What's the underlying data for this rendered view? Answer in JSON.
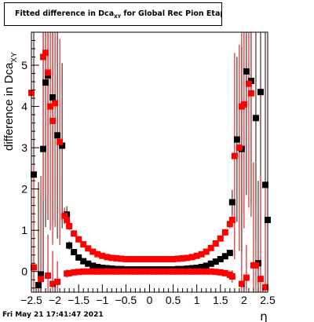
{
  "title": {
    "main": "Fitted difference in Dca",
    "sub": "XY",
    "rest": " for Global Rec Pion EtapT"
  },
  "footer": "Fri May 21 17:41:47 2021",
  "chart_data": {
    "type": "scatter",
    "title": "Fitted difference in DcaXY for Global Rec Pion EtapT",
    "xlabel": "η",
    "ylabel": "difference in Dca",
    "ylabel_sub": "XY",
    "xlim": [
      -2.5,
      2.5
    ],
    "ylim": [
      -0.5,
      5.8
    ],
    "xticks": [
      -2.5,
      -2,
      -1.5,
      -1,
      -0.5,
      0,
      0.5,
      1,
      1.5,
      2,
      2.5
    ],
    "xtick_labels": [
      "−2.5",
      "−2",
      "−1.5",
      "−1",
      "−0.5",
      "0",
      "0.5",
      "1",
      "1.5",
      "2",
      "2.5"
    ],
    "yticks": [
      0,
      1,
      2,
      3,
      4,
      5
    ],
    "ytick_labels": [
      "0",
      "1",
      "2",
      "3",
      "4",
      "5"
    ],
    "grid": false,
    "colors": {
      "series_a": "#000000",
      "series_b": "#ff0000",
      "error_bar_b": "#cc0000",
      "error_bar_a": "#330000"
    },
    "series": [
      {
        "color": "#000000",
        "marker": "square",
        "points": [
          [
            -2.45,
            2.35,
            5.0
          ],
          [
            -2.35,
            -0.33,
            2.5
          ],
          [
            -2.25,
            2.97,
            3.0
          ],
          [
            -2.2,
            4.58,
            3.5
          ],
          [
            -2.15,
            4.75,
            3.5
          ],
          [
            -2.05,
            4.22,
            3.0
          ],
          [
            -1.95,
            3.3,
            2.5
          ],
          [
            -1.85,
            3.05,
            2.0
          ],
          [
            -1.75,
            1.38,
            0.2
          ],
          [
            -1.7,
            0.63,
            0.1
          ],
          [
            -1.6,
            0.47,
            0.05
          ],
          [
            -1.5,
            0.34,
            0.03
          ],
          [
            -1.4,
            0.25,
            0.02
          ],
          [
            -1.3,
            0.19,
            0.02
          ],
          [
            -1.2,
            0.14,
            0.01
          ],
          [
            -1.1,
            0.11,
            0.01
          ],
          [
            -1.0,
            0.09,
            0.01
          ],
          [
            -0.9,
            0.08,
            0.01
          ],
          [
            -0.8,
            0.07,
            0.01
          ],
          [
            -0.7,
            0.06,
            0.01
          ],
          [
            -0.6,
            0.06,
            0.01
          ],
          [
            -0.5,
            0.05,
            0.01
          ],
          [
            -0.4,
            0.05,
            0.01
          ],
          [
            -0.3,
            0.05,
            0.01
          ],
          [
            -0.2,
            0.05,
            0.01
          ],
          [
            -0.1,
            0.05,
            0.01
          ],
          [
            0.0,
            0.05,
            0.01
          ],
          [
            0.1,
            0.05,
            0.01
          ],
          [
            0.2,
            0.05,
            0.01
          ],
          [
            0.3,
            0.05,
            0.01
          ],
          [
            0.4,
            0.05,
            0.01
          ],
          [
            0.5,
            0.05,
            0.01
          ],
          [
            0.6,
            0.06,
            0.01
          ],
          [
            0.7,
            0.06,
            0.01
          ],
          [
            0.8,
            0.07,
            0.01
          ],
          [
            0.9,
            0.08,
            0.01
          ],
          [
            1.0,
            0.09,
            0.01
          ],
          [
            1.1,
            0.11,
            0.01
          ],
          [
            1.2,
            0.14,
            0.01
          ],
          [
            1.3,
            0.19,
            0.02
          ],
          [
            1.4,
            0.24,
            0.02
          ],
          [
            1.5,
            0.3,
            0.03
          ],
          [
            1.6,
            0.37,
            0.04
          ],
          [
            1.7,
            0.45,
            0.05
          ],
          [
            1.75,
            1.68,
            0.3
          ],
          [
            1.85,
            3.2,
            2.0
          ],
          [
            1.95,
            2.97,
            2.5
          ],
          [
            2.05,
            4.85,
            3.0
          ],
          [
            2.15,
            4.62,
            3.0
          ],
          [
            2.25,
            3.72,
            3.0
          ],
          [
            2.35,
            4.35,
            3.0
          ],
          [
            2.45,
            2.1,
            5.0
          ],
          [
            2.5,
            1.25,
            5.0
          ],
          [
            -2.3,
            -0.07,
            2.0
          ],
          [
            2.3,
            0.2,
            2.0
          ]
        ]
      },
      {
        "color": "#ff0000",
        "marker": "square",
        "points": [
          [
            -2.5,
            4.33,
            4.5
          ],
          [
            -2.45,
            0.1,
            2.5
          ],
          [
            -2.3,
            -0.18,
            2.5
          ],
          [
            -2.25,
            5.2,
            3.5
          ],
          [
            -2.2,
            5.3,
            3.5
          ],
          [
            -2.15,
            4.82,
            3.5
          ],
          [
            -2.1,
            4.0,
            3.0
          ],
          [
            -2.05,
            3.65,
            3.0
          ],
          [
            -2.0,
            4.08,
            3.0
          ],
          [
            -1.9,
            3.14,
            2.5
          ],
          [
            -1.8,
            1.35,
            0.2
          ],
          [
            -1.75,
            1.25,
            0.15
          ],
          [
            -1.7,
            1.1,
            0.1
          ],
          [
            -1.6,
            0.92,
            0.08
          ],
          [
            -1.5,
            0.78,
            0.06
          ],
          [
            -1.4,
            0.66,
            0.05
          ],
          [
            -1.3,
            0.56,
            0.04
          ],
          [
            -1.2,
            0.48,
            0.03
          ],
          [
            -1.1,
            0.42,
            0.02
          ],
          [
            -1.0,
            0.38,
            0.02
          ],
          [
            -0.9,
            0.35,
            0.02
          ],
          [
            -0.8,
            0.33,
            0.02
          ],
          [
            -0.7,
            0.32,
            0.02
          ],
          [
            -0.6,
            0.31,
            0.02
          ],
          [
            -0.5,
            0.3,
            0.02
          ],
          [
            -0.4,
            0.3,
            0.02
          ],
          [
            -0.3,
            0.3,
            0.02
          ],
          [
            -0.2,
            0.3,
            0.02
          ],
          [
            -0.1,
            0.3,
            0.02
          ],
          [
            0.0,
            0.3,
            0.02
          ],
          [
            0.1,
            0.3,
            0.02
          ],
          [
            0.2,
            0.3,
            0.02
          ],
          [
            0.3,
            0.3,
            0.02
          ],
          [
            0.4,
            0.3,
            0.02
          ],
          [
            0.5,
            0.3,
            0.02
          ],
          [
            0.6,
            0.31,
            0.02
          ],
          [
            0.7,
            0.32,
            0.02
          ],
          [
            0.8,
            0.33,
            0.02
          ],
          [
            0.9,
            0.35,
            0.02
          ],
          [
            1.0,
            0.38,
            0.02
          ],
          [
            1.1,
            0.42,
            0.02
          ],
          [
            1.2,
            0.48,
            0.03
          ],
          [
            1.3,
            0.57,
            0.04
          ],
          [
            1.4,
            0.68,
            0.05
          ],
          [
            1.5,
            0.8,
            0.06
          ],
          [
            1.6,
            0.95,
            0.08
          ],
          [
            1.7,
            1.15,
            0.1
          ],
          [
            1.75,
            1.25,
            0.15
          ],
          [
            1.8,
            2.8,
            2.5
          ],
          [
            1.9,
            3.0,
            2.5
          ],
          [
            1.95,
            4.0,
            3.0
          ],
          [
            2.0,
            4.05,
            3.0
          ],
          [
            2.1,
            4.55,
            3.0
          ],
          [
            2.15,
            4.32,
            3.0
          ],
          [
            2.2,
            0.15,
            2.5
          ],
          [
            2.35,
            -0.18,
            2.5
          ],
          [
            2.45,
            -0.38,
            2.5
          ],
          [
            -1.75,
            -0.05,
            0.1
          ],
          [
            -1.7,
            -0.04,
            0.05
          ],
          [
            -1.6,
            -0.02,
            0.03
          ],
          [
            -1.5,
            -0.01,
            0.02
          ],
          [
            -1.4,
            0.0,
            0.02
          ],
          [
            -1.3,
            0.0,
            0.02
          ],
          [
            -1.2,
            0.0,
            0.02
          ],
          [
            -1.1,
            0.0,
            0.02
          ],
          [
            -1.0,
            0.0,
            0.02
          ],
          [
            -0.9,
            0.0,
            0.02
          ],
          [
            -0.8,
            0.0,
            0.02
          ],
          [
            -0.7,
            0.0,
            0.02
          ],
          [
            -0.6,
            0.0,
            0.02
          ],
          [
            -0.5,
            0.0,
            0.02
          ],
          [
            -0.4,
            0.0,
            0.02
          ],
          [
            -0.3,
            0.0,
            0.02
          ],
          [
            -0.2,
            0.0,
            0.02
          ],
          [
            -0.1,
            0.0,
            0.02
          ],
          [
            0.0,
            0.0,
            0.02
          ],
          [
            0.1,
            0.0,
            0.02
          ],
          [
            0.2,
            0.0,
            0.02
          ],
          [
            0.3,
            0.0,
            0.02
          ],
          [
            0.4,
            0.0,
            0.02
          ],
          [
            0.5,
            0.0,
            0.02
          ],
          [
            0.6,
            0.0,
            0.02
          ],
          [
            0.7,
            0.0,
            0.02
          ],
          [
            0.8,
            0.0,
            0.02
          ],
          [
            0.9,
            0.0,
            0.02
          ],
          [
            1.0,
            0.0,
            0.02
          ],
          [
            1.1,
            0.0,
            0.02
          ],
          [
            1.2,
            0.0,
            0.02
          ],
          [
            1.3,
            0.0,
            0.02
          ],
          [
            1.4,
            -0.01,
            0.02
          ],
          [
            1.5,
            -0.02,
            0.03
          ],
          [
            1.6,
            -0.04,
            0.05
          ],
          [
            1.7,
            -0.08,
            0.1
          ],
          [
            1.75,
            -0.12,
            0.15
          ],
          [
            -1.95,
            -0.25,
            0.5
          ],
          [
            -2.05,
            -0.3,
            0.8
          ],
          [
            1.95,
            -0.3,
            0.8
          ],
          [
            2.05,
            -0.15,
            0.8
          ],
          [
            -2.15,
            -0.1,
            1.0
          ],
          [
            2.25,
            0.15,
            1.5
          ]
        ]
      }
    ]
  }
}
